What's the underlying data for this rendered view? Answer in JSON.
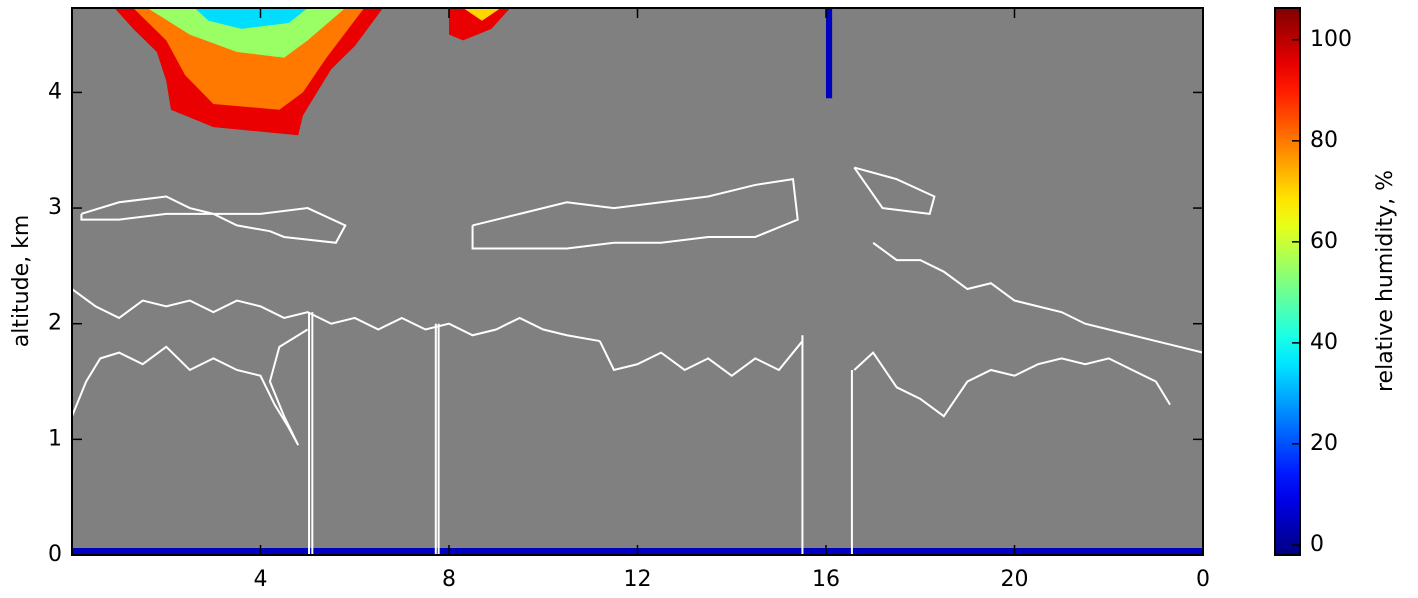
{
  "chart_data": {
    "type": "heatmap",
    "ylabel": "altitude, km",
    "xlim": [
      0,
      24
    ],
    "xticks": [
      4,
      8,
      12,
      16,
      20,
      {
        "value": 24,
        "label": "0"
      }
    ],
    "ylim": [
      0,
      4.73
    ],
    "yticks": [
      0,
      1,
      2,
      3,
      4
    ],
    "background": "#808080",
    "colormap": "jet",
    "clim": [
      -2,
      106.3
    ],
    "cticks": [
      0,
      20,
      40,
      60,
      80,
      100
    ],
    "colorbar_label": "relative humidity, %",
    "contour_color": "#ffffff",
    "patches": [
      {
        "value": 95,
        "x": [
          0.9,
          6.6,
          6.0,
          5.5,
          4.9,
          4.8,
          3.0,
          2.1,
          2.0,
          1.8,
          1.3
        ],
        "y": [
          4.73,
          4.73,
          4.4,
          4.2,
          3.8,
          3.63,
          3.7,
          3.85,
          4.1,
          4.35,
          4.55
        ]
      },
      {
        "value": 80,
        "x": [
          1.3,
          6.2,
          5.4,
          4.9,
          4.4,
          3.0,
          2.4,
          2.0
        ],
        "y": [
          4.73,
          4.73,
          4.3,
          4.0,
          3.85,
          3.9,
          4.15,
          4.45
        ]
      },
      {
        "value": 55,
        "x": [
          1.6,
          5.8,
          5.0,
          4.5,
          3.5,
          2.5
        ],
        "y": [
          4.73,
          4.73,
          4.45,
          4.3,
          4.35,
          4.5
        ]
      },
      {
        "value": 35,
        "x": [
          2.6,
          5.0,
          4.6,
          3.6,
          2.9
        ],
        "y": [
          4.73,
          4.73,
          4.6,
          4.55,
          4.62
        ]
      },
      {
        "value": 95,
        "x": [
          8.0,
          9.3,
          8.9,
          8.3,
          8.0
        ],
        "y": [
          4.73,
          4.73,
          4.55,
          4.45,
          4.5
        ]
      },
      {
        "value": 70,
        "x": [
          8.3,
          9.1,
          8.7
        ],
        "y": [
          4.73,
          4.73,
          4.62
        ]
      },
      {
        "value": 5,
        "x": [
          16.0,
          16.13,
          16.13,
          16.0
        ],
        "y": [
          4.73,
          4.73,
          3.95,
          3.95
        ]
      },
      {
        "value": 5,
        "x": [
          0,
          24,
          24,
          0
        ],
        "y": [
          0,
          0,
          0.06,
          0.06
        ]
      }
    ],
    "contours": [
      {
        "x": [
          0,
          0.5,
          1,
          1.5,
          2,
          2.5,
          3,
          3.5,
          4,
          4.5,
          5,
          5.5,
          6,
          6.5,
          7,
          7.5,
          8,
          8.5,
          9,
          9.5,
          10,
          10.5,
          11.2
        ],
        "y": [
          2.3,
          2.15,
          2.05,
          2.2,
          2.15,
          2.2,
          2.1,
          2.2,
          2.15,
          2.05,
          2.1,
          2.0,
          2.05,
          1.95,
          2.05,
          1.95,
          2.0,
          1.9,
          1.95,
          2.05,
          1.95,
          1.9,
          1.85
        ]
      },
      {
        "x": [
          0,
          0.3,
          0.6,
          1,
          1.5,
          2,
          2.5,
          3,
          3.5,
          4,
          4.3,
          4.6,
          4.8,
          4.5,
          4.2,
          4.4,
          5.0
        ],
        "y": [
          1.2,
          1.5,
          1.7,
          1.75,
          1.65,
          1.8,
          1.6,
          1.7,
          1.6,
          1.55,
          1.3,
          1.1,
          0.95,
          1.2,
          1.5,
          1.8,
          1.95
        ]
      },
      {
        "x": [
          0.2,
          1,
          2,
          2.5,
          3,
          4,
          5,
          5.8,
          5.6,
          4.5,
          4.2,
          3.5,
          3,
          2,
          1,
          0.2,
          0.2
        ],
        "y": [
          2.95,
          3.05,
          3.1,
          3.0,
          2.95,
          2.95,
          3.0,
          2.85,
          2.7,
          2.75,
          2.8,
          2.85,
          2.95,
          2.95,
          2.9,
          2.9,
          2.95
        ]
      },
      {
        "x": [
          8.5,
          9.5,
          10.5,
          11.5,
          12.5,
          13.5,
          14.5,
          15.3,
          15.4,
          14.5,
          13.5,
          12.5,
          11.5,
          10.5,
          9.5,
          8.5,
          8.5
        ],
        "y": [
          2.85,
          2.95,
          3.05,
          3.0,
          3.05,
          3.1,
          3.2,
          3.25,
          2.9,
          2.75,
          2.75,
          2.7,
          2.7,
          2.65,
          2.65,
          2.65,
          2.85
        ]
      },
      {
        "x": [
          11.2,
          11.5,
          12,
          12.5,
          13,
          13.5,
          14,
          14.5,
          15,
          15.5
        ],
        "y": [
          1.85,
          1.6,
          1.65,
          1.75,
          1.6,
          1.7,
          1.55,
          1.7,
          1.6,
          1.85
        ]
      },
      {
        "x": [
          17,
          17.5,
          18,
          18.5,
          19,
          19.5,
          20,
          20.5,
          21,
          21.5,
          22,
          22.5,
          23,
          23.5,
          24
        ],
        "y": [
          2.7,
          2.55,
          2.55,
          2.45,
          2.3,
          2.35,
          2.2,
          2.15,
          2.1,
          2.0,
          1.95,
          1.9,
          1.85,
          1.8,
          1.75
        ]
      },
      {
        "x": [
          16.6,
          17,
          17.5,
          18,
          18.5,
          19,
          19.5,
          20,
          20.5,
          21,
          21.5,
          22,
          22.5,
          23,
          23.3
        ],
        "y": [
          1.6,
          1.75,
          1.45,
          1.35,
          1.2,
          1.5,
          1.6,
          1.55,
          1.65,
          1.7,
          1.65,
          1.7,
          1.6,
          1.5,
          1.3
        ]
      },
      {
        "x": [
          16.6,
          17.5,
          18.3,
          18.2,
          17.2,
          16.6
        ],
        "y": [
          3.35,
          3.25,
          3.1,
          2.95,
          3.0,
          3.35
        ]
      },
      {
        "x": [
          5.03,
          5.03
        ],
        "y": [
          0,
          2.1
        ]
      },
      {
        "x": [
          5.1,
          5.1
        ],
        "y": [
          0,
          2.1
        ]
      },
      {
        "x": [
          7.72,
          7.72
        ],
        "y": [
          0,
          2.0
        ]
      },
      {
        "x": [
          7.78,
          7.78
        ],
        "y": [
          0,
          2.0
        ]
      },
      {
        "x": [
          15.5,
          15.5
        ],
        "y": [
          0,
          1.9
        ]
      },
      {
        "x": [
          16.55,
          16.55
        ],
        "y": [
          0,
          1.6
        ]
      }
    ]
  }
}
